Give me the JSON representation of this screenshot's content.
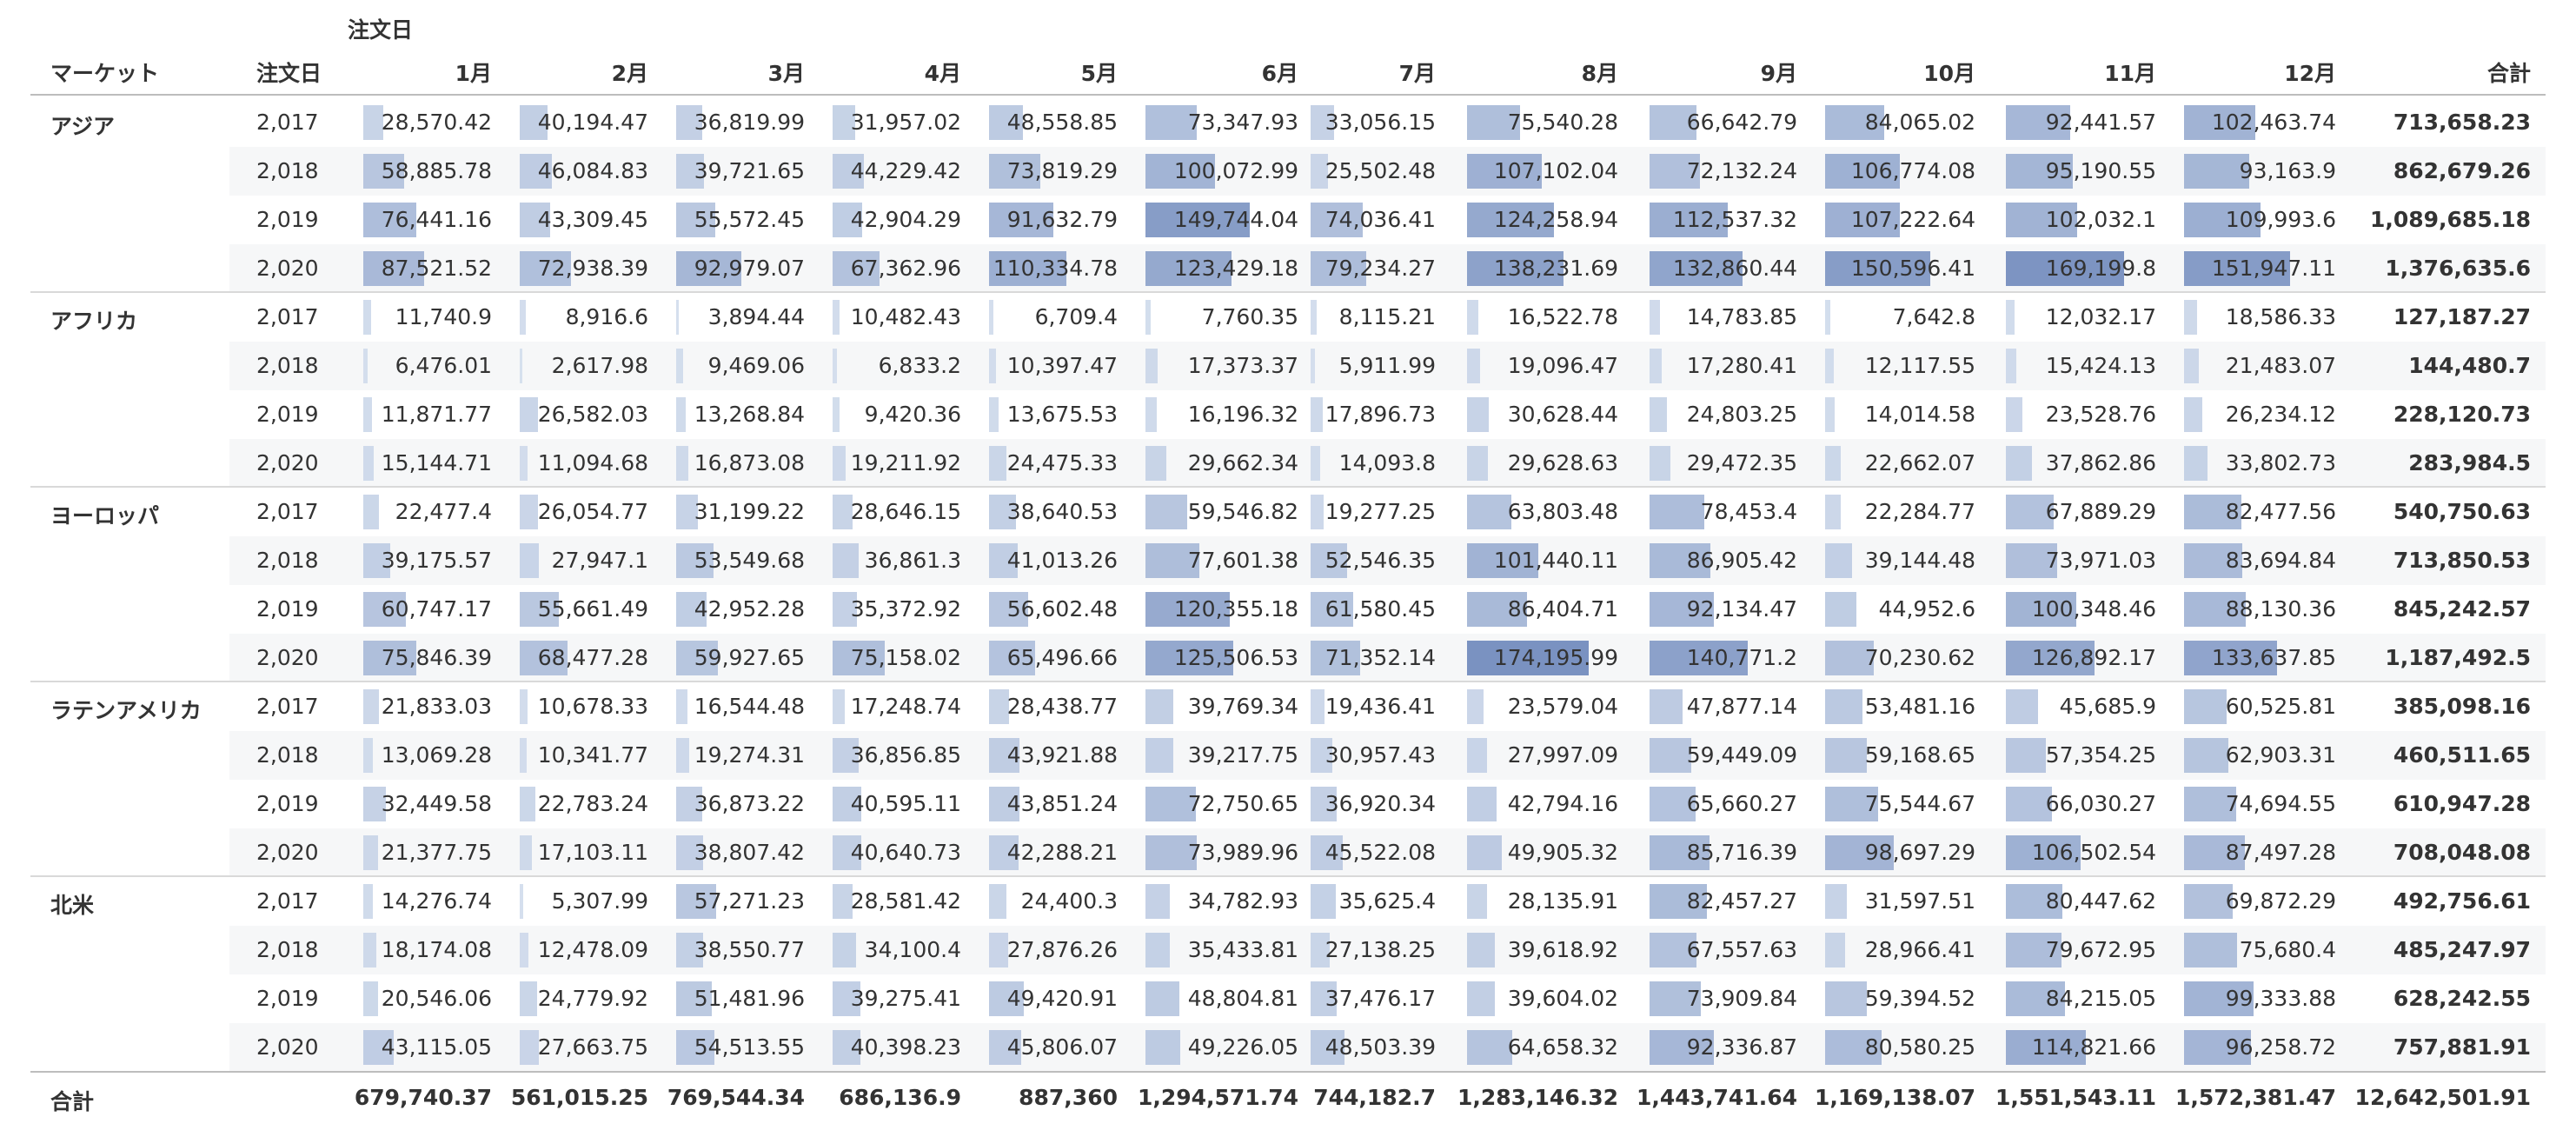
{
  "chart_data": {
    "type": "table",
    "title": "",
    "column_group_label": "注文日",
    "row_header_label": "マーケット",
    "year_header_label": "注文日",
    "months": [
      "1月",
      "2月",
      "3月",
      "4月",
      "5月",
      "6月",
      "7月",
      "8月",
      "9月",
      "10月",
      "11月",
      "12月"
    ],
    "total_label": "合計",
    "bar_color": "#7a92c1",
    "scale_max": 174195.99,
    "markets": [
      {
        "name": "アジア",
        "rows": [
          {
            "year": "2,017",
            "values": [
              "28,570.42",
              "40,194.47",
              "36,819.99",
              "31,957.02",
              "48,558.85",
              "73,347.93",
              "33,056.15",
              "75,540.28",
              "66,642.79",
              "84,065.02",
              "92,441.57",
              "102,463.74"
            ],
            "total": "713,658.23"
          },
          {
            "year": "2,018",
            "values": [
              "58,885.78",
              "46,084.83",
              "39,721.65",
              "44,229.42",
              "73,819.29",
              "100,072.99",
              "25,502.48",
              "107,102.04",
              "72,132.24",
              "106,774.08",
              "95,190.55",
              "93,163.9"
            ],
            "total": "862,679.26"
          },
          {
            "year": "2,019",
            "values": [
              "76,441.16",
              "43,309.45",
              "55,572.45",
              "42,904.29",
              "91,632.79",
              "149,744.04",
              "74,036.41",
              "124,258.94",
              "112,537.32",
              "107,222.64",
              "102,032.1",
              "109,993.6"
            ],
            "total": "1,089,685.18"
          },
          {
            "year": "2,020",
            "values": [
              "87,521.52",
              "72,938.39",
              "92,979.07",
              "67,362.96",
              "110,334.78",
              "123,429.18",
              "79,234.27",
              "138,231.69",
              "132,860.44",
              "150,596.41",
              "169,199.8",
              "151,947.11"
            ],
            "total": "1,376,635.6"
          }
        ]
      },
      {
        "name": "アフリカ",
        "rows": [
          {
            "year": "2,017",
            "values": [
              "11,740.9",
              "8,916.6",
              "3,894.44",
              "10,482.43",
              "6,709.4",
              "7,760.35",
              "8,115.21",
              "16,522.78",
              "14,783.85",
              "7,642.8",
              "12,032.17",
              "18,586.33"
            ],
            "total": "127,187.27"
          },
          {
            "year": "2,018",
            "values": [
              "6,476.01",
              "2,617.98",
              "9,469.06",
              "6,833.2",
              "10,397.47",
              "17,373.37",
              "5,911.99",
              "19,096.47",
              "17,280.41",
              "12,117.55",
              "15,424.13",
              "21,483.07"
            ],
            "total": "144,480.7"
          },
          {
            "year": "2,019",
            "values": [
              "11,871.77",
              "26,582.03",
              "13,268.84",
              "9,420.36",
              "13,675.53",
              "16,196.32",
              "17,896.73",
              "30,628.44",
              "24,803.25",
              "14,014.58",
              "23,528.76",
              "26,234.12"
            ],
            "total": "228,120.73"
          },
          {
            "year": "2,020",
            "values": [
              "15,144.71",
              "11,094.68",
              "16,873.08",
              "19,211.92",
              "24,475.33",
              "29,662.34",
              "14,093.8",
              "29,628.63",
              "29,472.35",
              "22,662.07",
              "37,862.86",
              "33,802.73"
            ],
            "total": "283,984.5"
          }
        ]
      },
      {
        "name": "ヨーロッパ",
        "rows": [
          {
            "year": "2,017",
            "values": [
              "22,477.4",
              "26,054.77",
              "31,199.22",
              "28,646.15",
              "38,640.53",
              "59,546.82",
              "19,277.25",
              "63,803.48",
              "78,453.4",
              "22,284.77",
              "67,889.29",
              "82,477.56"
            ],
            "total": "540,750.63"
          },
          {
            "year": "2,018",
            "values": [
              "39,175.57",
              "27,947.1",
              "53,549.68",
              "36,861.3",
              "41,013.26",
              "77,601.38",
              "52,546.35",
              "101,440.11",
              "86,905.42",
              "39,144.48",
              "73,971.03",
              "83,694.84"
            ],
            "total": "713,850.53"
          },
          {
            "year": "2,019",
            "values": [
              "60,747.17",
              "55,661.49",
              "42,952.28",
              "35,372.92",
              "56,602.48",
              "120,355.18",
              "61,580.45",
              "86,404.71",
              "92,134.47",
              "44,952.6",
              "100,348.46",
              "88,130.36"
            ],
            "total": "845,242.57"
          },
          {
            "year": "2,020",
            "values": [
              "75,846.39",
              "68,477.28",
              "59,927.65",
              "75,158.02",
              "65,496.66",
              "125,506.53",
              "71,352.14",
              "174,195.99",
              "140,771.2",
              "70,230.62",
              "126,892.17",
              "133,637.85"
            ],
            "total": "1,187,492.5"
          }
        ]
      },
      {
        "name": "ラテンアメリカ",
        "rows": [
          {
            "year": "2,017",
            "values": [
              "21,833.03",
              "10,678.33",
              "16,544.48",
              "17,248.74",
              "28,438.77",
              "39,769.34",
              "19,436.41",
              "23,579.04",
              "47,877.14",
              "53,481.16",
              "45,685.9",
              "60,525.81"
            ],
            "total": "385,098.16"
          },
          {
            "year": "2,018",
            "values": [
              "13,069.28",
              "10,341.77",
              "19,274.31",
              "36,856.85",
              "43,921.88",
              "39,217.75",
              "30,957.43",
              "27,997.09",
              "59,449.09",
              "59,168.65",
              "57,354.25",
              "62,903.31"
            ],
            "total": "460,511.65"
          },
          {
            "year": "2,019",
            "values": [
              "32,449.58",
              "22,783.24",
              "36,873.22",
              "40,595.11",
              "43,851.24",
              "72,750.65",
              "36,920.34",
              "42,794.16",
              "65,660.27",
              "75,544.67",
              "66,030.27",
              "74,694.55"
            ],
            "total": "610,947.28"
          },
          {
            "year": "2,020",
            "values": [
              "21,377.75",
              "17,103.11",
              "38,807.42",
              "40,640.73",
              "42,288.21",
              "73,989.96",
              "45,522.08",
              "49,905.32",
              "85,716.39",
              "98,697.29",
              "106,502.54",
              "87,497.28"
            ],
            "total": "708,048.08"
          }
        ]
      },
      {
        "name": "北米",
        "rows": [
          {
            "year": "2,017",
            "values": [
              "14,276.74",
              "5,307.99",
              "57,271.23",
              "28,581.42",
              "24,400.3",
              "34,782.93",
              "35,625.4",
              "28,135.91",
              "82,457.27",
              "31,597.51",
              "80,447.62",
              "69,872.29"
            ],
            "total": "492,756.61"
          },
          {
            "year": "2,018",
            "values": [
              "18,174.08",
              "12,478.09",
              "38,550.77",
              "34,100.4",
              "27,876.26",
              "35,433.81",
              "27,138.25",
              "39,618.92",
              "67,557.63",
              "28,966.41",
              "79,672.95",
              "75,680.4"
            ],
            "total": "485,247.97"
          },
          {
            "year": "2,019",
            "values": [
              "20,546.06",
              "24,779.92",
              "51,481.96",
              "39,275.41",
              "49,420.91",
              "48,804.81",
              "37,476.17",
              "39,604.02",
              "73,909.84",
              "59,394.52",
              "84,215.05",
              "99,333.88"
            ],
            "total": "628,242.55"
          },
          {
            "year": "2,020",
            "values": [
              "43,115.05",
              "27,663.75",
              "54,513.55",
              "40,398.23",
              "45,806.07",
              "49,226.05",
              "48,503.39",
              "64,658.32",
              "92,336.87",
              "80,580.25",
              "114,821.66",
              "96,258.72"
            ],
            "total": "757,881.91"
          }
        ]
      }
    ],
    "column_totals": [
      "679,740.37",
      "561,015.25",
      "769,544.34",
      "686,136.9",
      "887,360",
      "1,294,571.74",
      "744,182.7",
      "1,283,146.32",
      "1,443,741.64",
      "1,169,138.07",
      "1,551,543.11",
      "1,572,381.47"
    ],
    "grand_total": "12,642,501.91"
  }
}
